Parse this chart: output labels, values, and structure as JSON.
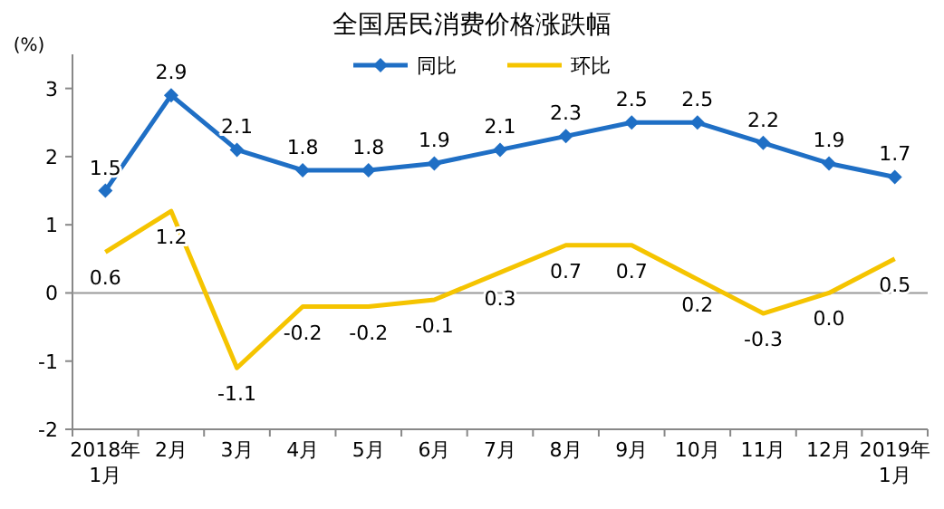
{
  "chart_data": {
    "type": "line",
    "title": "全国居民消费价格涨跌幅",
    "ylabel": "(%)",
    "categories": [
      "2018年\n1月",
      "2月",
      "3月",
      "4月",
      "5月",
      "6月",
      "7月",
      "8月",
      "9月",
      "10月",
      "11月",
      "12月",
      "2019年\n1月"
    ],
    "series": [
      {
        "name": "同比",
        "color": "#1f6fc5",
        "marker": "diamond",
        "values": [
          1.5,
          2.9,
          2.1,
          1.8,
          1.8,
          1.9,
          2.1,
          2.3,
          2.5,
          2.5,
          2.2,
          1.9,
          1.7
        ],
        "value_labels": [
          "1.5",
          "2.9",
          "2.1",
          "1.8",
          "1.8",
          "1.9",
          "2.1",
          "2.3",
          "2.5",
          "2.5",
          "2.2",
          "1.9",
          "1.7"
        ]
      },
      {
        "name": "环比",
        "color": "#f5c400",
        "marker": "none",
        "values": [
          0.6,
          1.2,
          -1.1,
          -0.2,
          -0.2,
          -0.1,
          0.3,
          0.7,
          0.7,
          0.2,
          -0.3,
          0.0,
          0.5
        ],
        "value_labels": [
          "0.6",
          "1.2",
          "-1.1",
          "-0.2",
          "-0.2",
          "-0.1",
          "0.3",
          "0.7",
          "0.7",
          "0.2",
          "-0.3",
          "0.0",
          "0.5"
        ]
      }
    ],
    "ylim": [
      -2,
      3.5
    ],
    "yticks": [
      -2,
      -1,
      0,
      1,
      2,
      3
    ],
    "legend": "top"
  }
}
